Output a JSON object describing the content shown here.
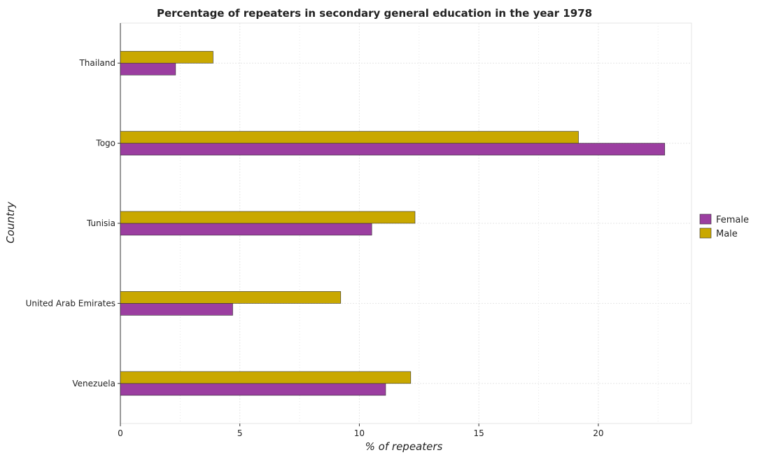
{
  "chart_data": {
    "type": "bar",
    "orientation": "horizontal",
    "title": "Percentage of repeaters in secondary general education in the year 1978",
    "xlabel": "% of repeaters",
    "ylabel": "Country",
    "categories": [
      "Thailand",
      "Togo",
      "Tunisia",
      "United Arab Emirates",
      "Venezuela"
    ],
    "series": [
      {
        "name": "Female",
        "color": "#9b3ea0",
        "values": [
          2.31,
          22.78,
          10.52,
          4.7,
          11.1
        ]
      },
      {
        "name": "Male",
        "color": "#c9a800",
        "values": [
          3.88,
          19.17,
          12.33,
          9.22,
          12.15
        ]
      }
    ],
    "xlim": [
      0,
      23.9
    ],
    "xticks": [
      0,
      5,
      10,
      15,
      20
    ],
    "grid": true,
    "legend_position": "right"
  }
}
